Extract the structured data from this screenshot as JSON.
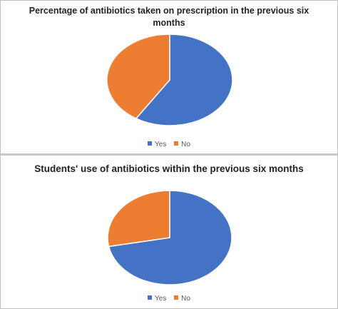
{
  "chart_data": [
    {
      "type": "pie",
      "title": "Percentage of antibiotics taken on prescription in the previous six months",
      "categories": [
        "Yes",
        "No"
      ],
      "values": [
        59,
        41
      ],
      "colors": [
        "#4472C4",
        "#ED7D31"
      ],
      "legend": "bottom",
      "start_angle": "12-o-clock, clockwise"
    },
    {
      "type": "pie",
      "title": "Students' use of antibiotics within the previous six months",
      "categories": [
        "Yes",
        "No"
      ],
      "values": [
        72,
        28
      ],
      "colors": [
        "#4472C4",
        "#ED7D31"
      ],
      "legend": "bottom",
      "start_angle": "12-o-clock, clockwise"
    }
  ]
}
